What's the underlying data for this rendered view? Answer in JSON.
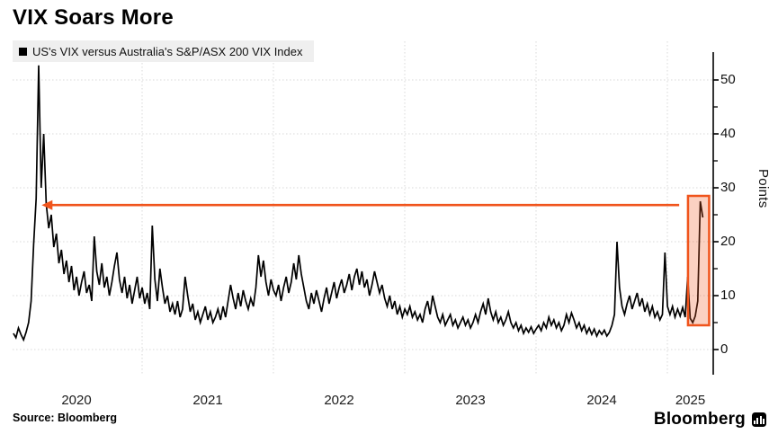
{
  "header": {
    "title": "VIX Soars More"
  },
  "legend": {
    "marker": "square-swatch",
    "label": "US's VIX versus Australia's S&P/ASX 200 VIX Index"
  },
  "source": {
    "text": "Source: Bloomberg"
  },
  "branding": {
    "name": "Bloomberg",
    "icon": "bar-chart-icon"
  },
  "colors": {
    "line": "#000000",
    "accent": "#f0541c",
    "highlight_fill_rgba": "rgba(240,84,28,0.27)",
    "grid": "#d8d8d8",
    "axis": "#000000",
    "legend_bg": "#efefef",
    "text": "#111111"
  },
  "y_axis": {
    "label": "Points",
    "major_ticks": [
      0,
      10,
      20,
      30,
      40,
      50
    ],
    "minor_ticks": [
      5,
      15,
      25,
      35,
      45
    ],
    "range": [
      0,
      55
    ]
  },
  "x_axis": {
    "year_labels": [
      "2020",
      "2021",
      "2022",
      "2023",
      "2024",
      "2025"
    ],
    "gridline_years": [
      2021,
      2022,
      2023,
      2024,
      2025
    ],
    "range_years": [
      2020,
      2025.35
    ]
  },
  "annotations": {
    "arrow": {
      "y_value": 26.8,
      "from_year": 2025.09,
      "to_year": 2020.235,
      "direction": "left"
    },
    "highlight_box": {
      "x_start_year": 2025.157,
      "x_end_year": 2025.318,
      "y_min": 4.5,
      "y_max": 28.5
    }
  },
  "chart_data": {
    "type": "line",
    "title": "VIX Soars More",
    "series_label": "US's VIX versus Australia's S&P/ASX 200 VIX Index",
    "xlabel": "",
    "ylabel": "Points",
    "ylim": [
      0,
      55
    ],
    "grid": true,
    "legend_position": "top-left",
    "x_start": 2020.02,
    "x_step_years": 0.019231,
    "sampling": "weekly-approximation",
    "values": [
      3.0,
      2.2,
      4.0,
      2.8,
      1.8,
      3.2,
      5.0,
      9.0,
      19.5,
      28.0,
      52.7,
      30.0,
      40.0,
      27.0,
      22.5,
      25.0,
      19.0,
      21.5,
      16.0,
      18.5,
      14.0,
      16.5,
      12.5,
      15.5,
      11.0,
      13.5,
      10.0,
      12.5,
      14.5,
      10.5,
      12.0,
      9.0,
      21.0,
      14.5,
      12.0,
      16.0,
      11.5,
      13.5,
      10.0,
      12.5,
      15.5,
      18.0,
      13.0,
      10.5,
      13.5,
      9.5,
      12.0,
      8.5,
      11.0,
      13.5,
      9.5,
      11.5,
      8.5,
      10.5,
      7.5,
      23.0,
      13.0,
      9.0,
      15.0,
      11.5,
      8.5,
      10.0,
      7.0,
      8.5,
      6.5,
      9.0,
      6.0,
      7.5,
      13.5,
      10.0,
      7.0,
      8.5,
      5.5,
      7.0,
      5.0,
      6.5,
      8.0,
      5.5,
      7.0,
      5.0,
      6.0,
      7.5,
      5.5,
      8.0,
      6.0,
      9.0,
      12.0,
      9.5,
      7.5,
      10.5,
      8.0,
      11.0,
      9.0,
      7.5,
      9.5,
      8.0,
      11.5,
      17.5,
      13.5,
      16.5,
      12.5,
      10.0,
      13.0,
      11.0,
      10.0,
      12.0,
      9.0,
      11.5,
      13.5,
      10.5,
      12.5,
      16.0,
      13.0,
      17.5,
      14.0,
      11.5,
      9.0,
      7.5,
      10.5,
      8.5,
      11.0,
      9.0,
      7.0,
      9.5,
      11.5,
      8.5,
      10.5,
      12.5,
      9.5,
      11.5,
      13.0,
      10.5,
      12.0,
      14.0,
      11.0,
      13.5,
      15.0,
      12.0,
      14.5,
      11.5,
      13.0,
      10.0,
      12.0,
      14.5,
      12.5,
      10.5,
      12.0,
      9.5,
      8.0,
      10.0,
      7.5,
      9.0,
      6.5,
      8.0,
      6.0,
      7.5,
      6.5,
      8.0,
      6.0,
      7.0,
      5.5,
      6.5,
      5.0,
      7.5,
      9.0,
      6.5,
      10.0,
      8.0,
      6.0,
      5.0,
      6.5,
      4.5,
      5.5,
      6.5,
      4.5,
      5.5,
      4.0,
      5.0,
      6.0,
      4.5,
      5.5,
      4.0,
      5.0,
      6.5,
      5.0,
      7.0,
      8.5,
      6.5,
      9.5,
      7.0,
      5.5,
      7.0,
      5.0,
      6.0,
      4.5,
      5.5,
      7.0,
      5.0,
      4.0,
      5.0,
      3.5,
      4.5,
      3.0,
      4.0,
      3.2,
      4.2,
      3.0,
      3.8,
      4.5,
      3.5,
      5.0,
      4.0,
      6.0,
      4.5,
      5.5,
      4.0,
      5.0,
      3.5,
      4.5,
      6.5,
      5.0,
      6.8,
      5.5,
      4.0,
      5.0,
      3.5,
      4.5,
      3.0,
      4.0,
      2.8,
      3.8,
      2.5,
      3.5,
      2.8,
      3.6,
      2.5,
      3.2,
      4.5,
      6.5,
      20.0,
      11.5,
      8.0,
      6.5,
      8.5,
      10.0,
      7.5,
      9.0,
      10.5,
      8.0,
      9.5,
      7.0,
      8.5,
      6.5,
      8.0,
      6.0,
      7.0,
      5.5,
      6.5,
      18.0,
      8.0,
      6.5,
      8.0,
      6.0,
      7.5,
      6.2,
      7.8,
      6.0,
      13.5,
      5.8,
      5.0,
      6.2,
      9.0,
      27.5,
      24.5
    ]
  }
}
